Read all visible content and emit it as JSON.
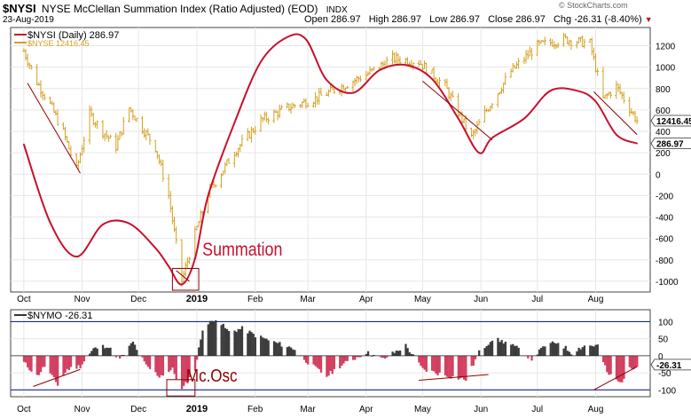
{
  "header": {
    "symbol": "$NYSI",
    "title": "NYSE McClellan Summation Index (Ratio Adjusted) (EOD)",
    "exchange": "INDX",
    "date": "23-Aug-2019",
    "open_label": "Open",
    "open": "286.97",
    "high_label": "High",
    "high": "286.97",
    "low_label": "Low",
    "low": "286.97",
    "close_label": "Close",
    "close": "286.97",
    "chg_label": "Chg",
    "chg": "-26.31 (-8.40%)",
    "watermark": "© StockCharts.com"
  },
  "legend": {
    "nysi": "$NYSI (Daily) 286.97",
    "nyse": "$NYSE 12416.45",
    "nymo": "$NYMO -26.31"
  },
  "colors": {
    "nysi_line": "#c8102e",
    "nyse_bars": "#d4a020",
    "nymo_pos": "#3c3c3c",
    "nymo_neg": "#d24060",
    "band_line": "#1a2a8c",
    "annotation": "#8b0000"
  },
  "annotations": {
    "summation": "Summation",
    "mcosc": "Mc.Osc"
  },
  "price_tags": {
    "nyse": "12416.45",
    "nysi": "286.97",
    "nymo": "-26.31"
  },
  "chart_data": [
    {
      "type": "line",
      "panel": "main",
      "xlabel": "",
      "ylabel": "",
      "x_ticks": [
        "Oct",
        "Nov",
        "Dec",
        "2019",
        "Feb",
        "Mar",
        "Apr",
        "May",
        "Jun",
        "Jul",
        "Aug"
      ],
      "y_ticks": [
        1200,
        1000,
        800,
        600,
        400,
        200,
        0,
        -200,
        -400,
        -600,
        -800,
        -1000
      ],
      "ylim": [
        -1100,
        1370
      ],
      "grid": true,
      "series": [
        {
          "name": "$NYSI (Daily) 286.97",
          "x": [
            "2018-10-01",
            "2018-10-15",
            "2018-10-29",
            "2018-11-12",
            "2018-11-26",
            "2018-12-10",
            "2018-12-17",
            "2018-12-24",
            "2018-12-31",
            "2019-01-07",
            "2019-01-21",
            "2019-02-04",
            "2019-02-18",
            "2019-02-28",
            "2019-03-11",
            "2019-03-25",
            "2019-04-08",
            "2019-04-22",
            "2019-05-06",
            "2019-05-20",
            "2019-05-31",
            "2019-06-07",
            "2019-06-24",
            "2019-07-08",
            "2019-07-22",
            "2019-08-01",
            "2019-08-12",
            "2019-08-23"
          ],
          "values": [
            280,
            -450,
            -770,
            -470,
            -460,
            -690,
            -860,
            -1030,
            -790,
            -200,
            480,
            1050,
            1280,
            1260,
            880,
            760,
            970,
            1020,
            890,
            520,
            200,
            340,
            520,
            780,
            780,
            680,
            370,
            287
          ]
        },
        {
          "name": "$NYSE 12416.45",
          "type": "ohlc",
          "x": [
            "2018-10-01",
            "2018-10-08",
            "2018-10-15",
            "2018-10-22",
            "2018-10-29",
            "2018-11-05",
            "2018-11-12",
            "2018-11-19",
            "2018-11-26",
            "2018-12-03",
            "2018-12-10",
            "2018-12-17",
            "2018-12-24",
            "2018-12-31",
            "2019-01-07",
            "2019-01-21",
            "2019-02-04",
            "2019-02-18",
            "2019-03-04",
            "2019-03-18",
            "2019-04-01",
            "2019-04-15",
            "2019-04-29",
            "2019-05-13",
            "2019-05-27",
            "2019-06-03",
            "2019-06-17",
            "2019-07-01",
            "2019-07-15",
            "2019-07-29",
            "2019-08-05",
            "2019-08-12",
            "2019-08-23"
          ],
          "values": [
            1150,
            860,
            650,
            390,
            40,
            560,
            400,
            260,
            620,
            430,
            250,
            -200,
            -1000,
            -560,
            -180,
            210,
            500,
            620,
            700,
            810,
            930,
            1080,
            1050,
            820,
            340,
            570,
            960,
            1200,
            1260,
            1220,
            700,
            820,
            500
          ]
        }
      ],
      "trendlines": 4
    },
    {
      "type": "area",
      "panel": "lower",
      "x_ticks": [
        "Oct",
        "Nov",
        "Dec",
        "2019",
        "Feb",
        "Mar",
        "Apr",
        "May",
        "Jun",
        "Jul",
        "Aug"
      ],
      "y_ticks": [
        100,
        50,
        0,
        -50,
        -100
      ],
      "ylim": [
        -120,
        135
      ],
      "bands": [
        100,
        -100
      ],
      "series": [
        {
          "name": "$NYMO -26.31",
          "x": [
            "2018-10-01",
            "2018-10-08",
            "2018-10-12",
            "2018-10-19",
            "2018-10-24",
            "2018-10-31",
            "2018-11-07",
            "2018-11-14",
            "2018-11-21",
            "2018-11-28",
            "2018-12-05",
            "2018-12-12",
            "2018-12-19",
            "2018-12-24",
            "2018-12-31",
            "2019-01-04",
            "2019-01-11",
            "2019-01-18",
            "2019-01-25",
            "2019-02-01",
            "2019-02-11",
            "2019-02-22",
            "2019-03-01",
            "2019-03-11",
            "2019-03-18",
            "2019-03-25",
            "2019-04-01",
            "2019-04-10",
            "2019-04-22",
            "2019-05-01",
            "2019-05-08",
            "2019-05-15",
            "2019-05-24",
            "2019-05-31",
            "2019-06-07",
            "2019-06-14",
            "2019-06-21",
            "2019-06-28",
            "2019-07-05",
            "2019-07-12",
            "2019-07-19",
            "2019-07-26",
            "2019-08-02",
            "2019-08-07",
            "2019-08-14",
            "2019-08-19",
            "2019-08-23"
          ],
          "values": [
            -20,
            -60,
            -30,
            -85,
            -40,
            -30,
            20,
            30,
            -10,
            40,
            -30,
            -60,
            -40,
            -100,
            -40,
            80,
            110,
            70,
            80,
            60,
            40,
            20,
            -20,
            -60,
            -30,
            -10,
            10,
            -10,
            30,
            -40,
            -50,
            -60,
            -70,
            10,
            50,
            40,
            20,
            -10,
            30,
            40,
            10,
            30,
            30,
            -50,
            -80,
            -40,
            -26
          ]
        }
      ],
      "trendlines": 3
    }
  ]
}
